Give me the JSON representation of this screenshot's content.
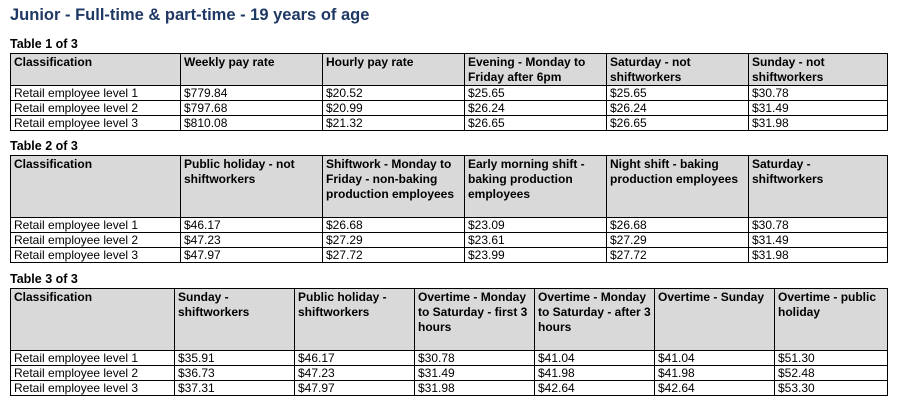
{
  "title": "Junior - Full-time & part-time - 19 years of age",
  "tables": [
    {
      "caption": "Table 1 of 3",
      "headers": [
        "Classification",
        "Weekly pay rate",
        "Hourly pay rate",
        "Evening - Monday to Friday after 6pm",
        "Saturday - not shiftworkers",
        "Sunday - not shiftworkers"
      ],
      "rows": [
        [
          "Retail employee level 1",
          "$779.84",
          "$20.52",
          "$25.65",
          "$25.65",
          "$30.78"
        ],
        [
          "Retail employee level 2",
          "$797.68",
          "$20.99",
          "$26.24",
          "$26.24",
          "$31.49"
        ],
        [
          "Retail employee level 3",
          "$810.08",
          "$21.32",
          "$26.65",
          "$26.65",
          "$31.98"
        ]
      ]
    },
    {
      "caption": "Table 2 of 3",
      "headers": [
        "Classification",
        "Public holiday - not shiftworkers",
        "Shiftwork - Monday to Friday - non-baking production employees",
        "Early morning shift - baking production employees",
        "Night shift - baking production employees",
        "Saturday - shiftworkers"
      ],
      "rows": [
        [
          "Retail employee level 1",
          "$46.17",
          "$26.68",
          "$23.09",
          "$26.68",
          "$30.78"
        ],
        [
          "Retail employee level 2",
          "$47.23",
          "$27.29",
          "$23.61",
          "$27.29",
          "$31.49"
        ],
        [
          "Retail employee level 3",
          "$47.97",
          "$27.72",
          "$23.99",
          "$27.72",
          "$31.98"
        ]
      ]
    },
    {
      "caption": "Table 3 of 3",
      "headers": [
        "Classification",
        "Sunday - shiftworkers",
        "Public holiday - shiftworkers",
        "Overtime - Monday to Saturday - first 3 hours",
        "Overtime - Monday to Saturday - after 3 hours",
        "Overtime - Sunday",
        "Overtime - public holiday"
      ],
      "rows": [
        [
          "Retail employee level 1",
          "$35.91",
          "$46.17",
          "$30.78",
          "$41.04",
          "$41.04",
          "$51.30"
        ],
        [
          "Retail employee level 2",
          "$36.73",
          "$47.23",
          "$31.49",
          "$41.98",
          "$41.98",
          "$52.48"
        ],
        [
          "Retail employee level 3",
          "$37.31",
          "$47.97",
          "$31.98",
          "$42.64",
          "$42.64",
          "$53.30"
        ]
      ]
    }
  ]
}
